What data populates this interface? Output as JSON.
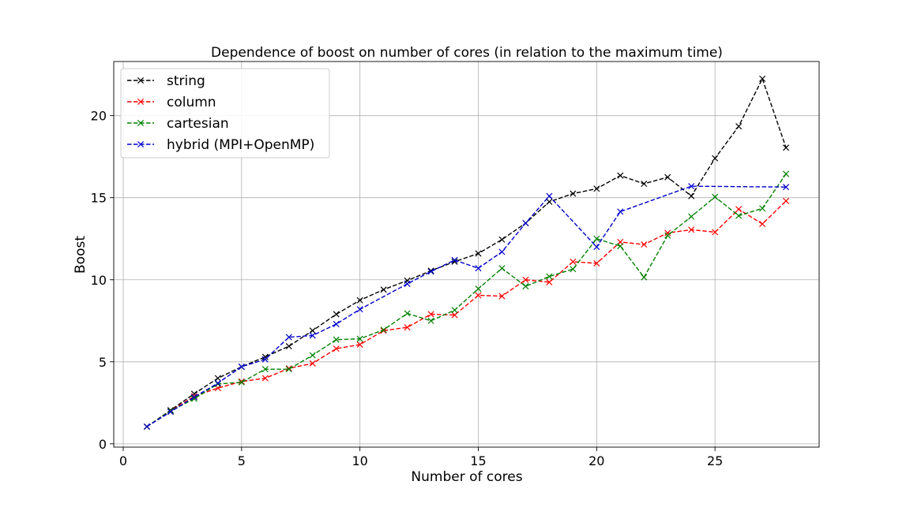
{
  "chart_data": {
    "type": "line",
    "title": "Dependence of boost on number of cores (in relation to the maximum time)",
    "xlabel": "Number of cores",
    "ylabel": "Boost",
    "xlim": [
      -0.4,
      29.4
    ],
    "ylim": [
      -0.2,
      23.3
    ],
    "xticks": [
      0,
      5,
      10,
      15,
      20,
      25
    ],
    "yticks": [
      0,
      5,
      10,
      15,
      20
    ],
    "grid": true,
    "legend_position": "top-left",
    "x": [
      1,
      2,
      3,
      4,
      5,
      6,
      7,
      8,
      9,
      10,
      11,
      12,
      13,
      14,
      15,
      16,
      17,
      18,
      19,
      20,
      21,
      22,
      23,
      24,
      25,
      26,
      27,
      28
    ],
    "series": [
      {
        "name": "string",
        "color": "#000000",
        "values": [
          1.05,
          2.05,
          3.05,
          4.0,
          4.7,
          5.3,
          5.95,
          6.9,
          7.9,
          8.75,
          9.4,
          9.95,
          10.55,
          11.1,
          11.6,
          12.45,
          13.45,
          14.75,
          15.25,
          15.55,
          16.35,
          15.85,
          16.25,
          15.1,
          17.4,
          19.35,
          22.25,
          18.05
        ]
      },
      {
        "name": "column",
        "color": "#ff0000",
        "values": [
          1.05,
          2.0,
          2.9,
          3.4,
          3.8,
          4.0,
          4.6,
          4.9,
          5.8,
          6.05,
          6.9,
          7.1,
          7.9,
          7.85,
          9.05,
          9.0,
          10.0,
          9.85,
          11.1,
          11.0,
          12.3,
          12.15,
          12.85,
          13.05,
          12.9,
          14.3,
          13.4,
          14.8
        ]
      },
      {
        "name": "cartesian",
        "color": "#008000",
        "values": [
          1.05,
          2.0,
          2.75,
          3.65,
          3.75,
          4.55,
          4.55,
          5.4,
          6.35,
          6.4,
          6.95,
          7.95,
          7.5,
          8.15,
          9.45,
          10.7,
          9.6,
          10.2,
          10.65,
          12.5,
          12.05,
          10.15,
          12.7,
          13.85,
          15.05,
          13.9,
          14.35,
          16.45
        ]
      },
      {
        "name": "hybrid (MPI+OpenMP)",
        "color": "#0000cc",
        "values": [
          1.05,
          1.95,
          2.85,
          3.7,
          4.7,
          5.15,
          6.5,
          6.6,
          7.3,
          8.2,
          null,
          9.75,
          10.5,
          11.2,
          10.7,
          11.7,
          13.45,
          15.1,
          null,
          12.0,
          14.15,
          null,
          null,
          15.7,
          null,
          null,
          null,
          15.65
        ]
      }
    ]
  }
}
